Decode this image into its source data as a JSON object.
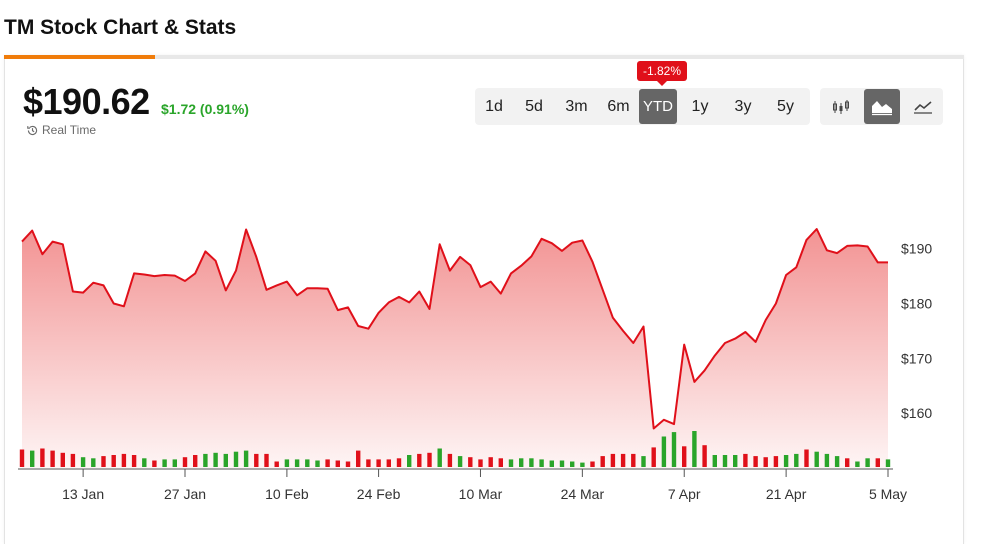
{
  "page": {
    "title": "TM Stock Chart & Stats"
  },
  "quote": {
    "price": "$190.62",
    "change": "$1.72 (0.91%)",
    "realtime_label": "Real Time"
  },
  "badge": {
    "ytd_change": "-1.82%"
  },
  "ranges": [
    "1d",
    "5d",
    "3m",
    "6m",
    "YTD",
    "1y",
    "3y",
    "5y"
  ],
  "active_range": "YTD",
  "chart_types": [
    {
      "name": "candlestick-icon",
      "active": false
    },
    {
      "name": "area-chart-icon",
      "active": true
    },
    {
      "name": "line-chart-icon",
      "active": false
    }
  ],
  "colors": {
    "accent": "#f07c0a",
    "line": "#e0101a",
    "down_volume": "#e0101a",
    "up_volume": "#2aa52a",
    "positive": "#2aa52a"
  },
  "chart_data": {
    "type": "area",
    "y_ticks": [
      "$160",
      "$170",
      "$180",
      "$190"
    ],
    "y_tick_values": [
      160,
      170,
      180,
      190
    ],
    "ylim": [
      150,
      208
    ],
    "x_ticks": [
      "13 Jan",
      "27 Jan",
      "10 Feb",
      "24 Feb",
      "10 Mar",
      "24 Mar",
      "7 Apr",
      "21 Apr",
      "5 May"
    ],
    "x_tick_index": [
      6,
      16,
      26,
      35,
      45,
      55,
      65,
      75,
      85
    ],
    "grid": false,
    "legend": "none",
    "prices": [
      191.3,
      193.3,
      189.0,
      191.3,
      190.8,
      182.2,
      182.0,
      183.8,
      183.3,
      180.0,
      179.5,
      185.5,
      185.3,
      185.0,
      185.2,
      185.1,
      184.1,
      185.5,
      189.5,
      187.8,
      182.4,
      186.0,
      193.5,
      188.5,
      182.5,
      183.3,
      184.0,
      181.5,
      182.8,
      182.8,
      182.7,
      178.8,
      179.3,
      175.9,
      175.4,
      178.3,
      180.2,
      181.2,
      180.2,
      182.2,
      179.0,
      190.8,
      186.0,
      188.5,
      187.0,
      183.0,
      184.0,
      181.8,
      185.5,
      186.9,
      188.6,
      191.8,
      191.0,
      189.6,
      191.1,
      191.5,
      187.6,
      182.5,
      177.4,
      175.0,
      172.8,
      175.8,
      157.2,
      158.8,
      158.0,
      172.5,
      165.7,
      167.8,
      170.5,
      172.8,
      173.6,
      174.8,
      173.0,
      177.0,
      180.0,
      185.2,
      186.6,
      191.6,
      193.6,
      189.7,
      189.2,
      190.5,
      190.6,
      190.4,
      187.5,
      187.5
    ],
    "volume": [
      16,
      15,
      17,
      15,
      13,
      12,
      9,
      8,
      10,
      11,
      12,
      11,
      8,
      6,
      7,
      7,
      9,
      11,
      12,
      13,
      12,
      14,
      15,
      12,
      12,
      5,
      7,
      7,
      7,
      6,
      7,
      6,
      5,
      15,
      7,
      7,
      7,
      8,
      11,
      12,
      13,
      17,
      12,
      10,
      9,
      7,
      9,
      8,
      7,
      8,
      8,
      7,
      6,
      6,
      5,
      4,
      5,
      10,
      12,
      12,
      12,
      10,
      18,
      28,
      32,
      19,
      33,
      20,
      11,
      11,
      11,
      12,
      10,
      9,
      10,
      11,
      12,
      16,
      14,
      12,
      10,
      8,
      5,
      8,
      8,
      7
    ],
    "volume_up": [
      false,
      true,
      false,
      false,
      false,
      false,
      true,
      true,
      false,
      false,
      false,
      false,
      true,
      false,
      true,
      true,
      false,
      false,
      true,
      true,
      true,
      true,
      true,
      false,
      false,
      false,
      true,
      true,
      true,
      true,
      false,
      false,
      false,
      false,
      false,
      false,
      false,
      false,
      true,
      false,
      false,
      true,
      false,
      true,
      false,
      false,
      false,
      false,
      true,
      true,
      true,
      true,
      true,
      true,
      true,
      true,
      false,
      false,
      false,
      false,
      false,
      true,
      false,
      true,
      true,
      false,
      true,
      false,
      true,
      true,
      true,
      false,
      false,
      false,
      false,
      true,
      true,
      false,
      true,
      true,
      true,
      false,
      true,
      true,
      false,
      true
    ]
  }
}
